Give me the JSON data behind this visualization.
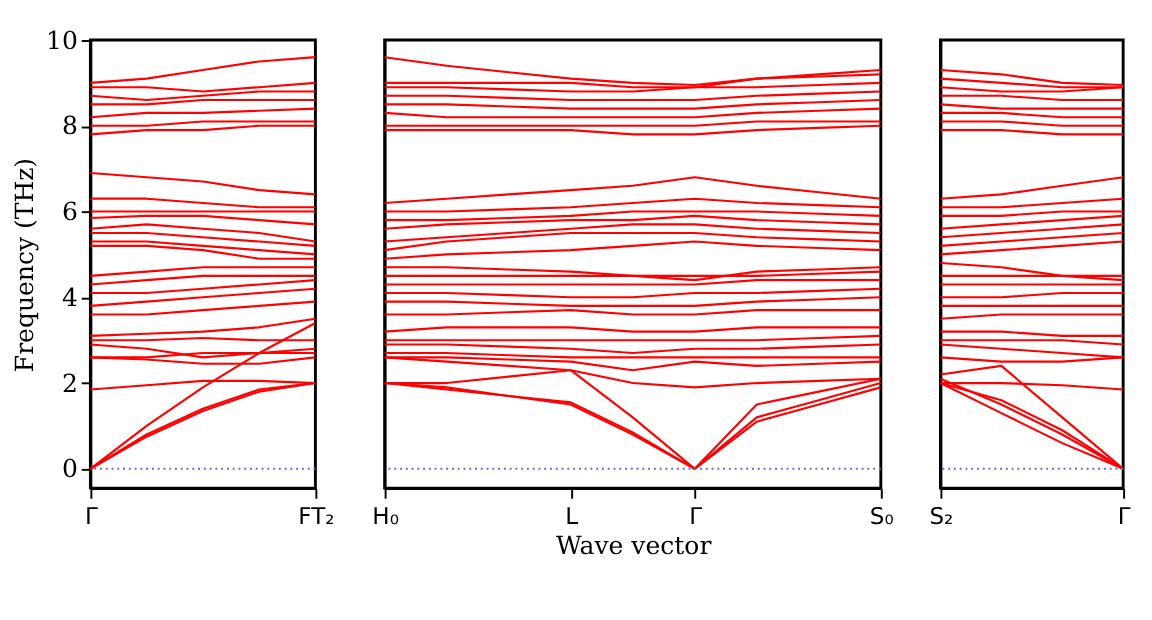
{
  "chart_data": [
    {
      "type": "line",
      "ylabel": "Frequency (THz)",
      "categories": [
        "Γ",
        null,
        null,
        null,
        "FT₂"
      ],
      "ylim": [
        -0.45,
        10
      ],
      "yticks": [
        0,
        2,
        4,
        6,
        8,
        10
      ],
      "grid": false,
      "tick_labels": "xy",
      "line_style": "solid",
      "marker": "none",
      "ref_lines": [
        {
          "axis": "y",
          "value": 0,
          "color": "#6666dd",
          "line_style": "dotted"
        }
      ],
      "series": [
        {
          "color": "#ff0000",
          "values": [
            0,
            0.75,
            1.35,
            1.8,
            2.0
          ]
        },
        {
          "color": "#ff0000",
          "values": [
            0,
            0.8,
            1.4,
            1.85,
            2.0
          ]
        },
        {
          "color": "#ff0000",
          "values": [
            0,
            1.0,
            1.9,
            2.7,
            3.4
          ]
        },
        {
          "color": "#ff0000",
          "values": [
            1.85,
            1.95,
            2.05,
            2.05,
            2.0
          ]
        },
        {
          "color": "#ff0000",
          "values": [
            2.6,
            2.55,
            2.45,
            2.45,
            2.6
          ]
        },
        {
          "color": "#ff0000",
          "values": [
            2.6,
            2.6,
            2.7,
            2.7,
            2.7
          ]
        },
        {
          "color": "#ff0000",
          "values": [
            2.9,
            2.8,
            2.6,
            2.7,
            2.8
          ]
        },
        {
          "color": "#ff0000",
          "values": [
            3.0,
            3.0,
            3.05,
            3.0,
            3.0
          ]
        },
        {
          "color": "#ff0000",
          "values": [
            3.1,
            3.15,
            3.2,
            3.3,
            3.5
          ]
        },
        {
          "color": "#ff0000",
          "values": [
            3.6,
            3.6,
            3.7,
            3.8,
            3.9
          ]
        },
        {
          "color": "#ff0000",
          "values": [
            3.8,
            3.9,
            4.0,
            4.1,
            4.2
          ]
        },
        {
          "color": "#ff0000",
          "values": [
            4.1,
            4.1,
            4.2,
            4.3,
            4.4
          ]
        },
        {
          "color": "#ff0000",
          "values": [
            4.3,
            4.4,
            4.5,
            4.5,
            4.5
          ]
        },
        {
          "color": "#ff0000",
          "values": [
            4.5,
            4.6,
            4.7,
            4.7,
            4.7
          ]
        },
        {
          "color": "#ff0000",
          "values": [
            5.2,
            5.2,
            5.1,
            4.9,
            4.9
          ]
        },
        {
          "color": "#ff0000",
          "values": [
            5.3,
            5.3,
            5.2,
            5.1,
            5.0
          ]
        },
        {
          "color": "#ff0000",
          "values": [
            5.5,
            5.5,
            5.4,
            5.3,
            5.2
          ]
        },
        {
          "color": "#ff0000",
          "values": [
            5.6,
            5.7,
            5.6,
            5.5,
            5.3
          ]
        },
        {
          "color": "#ff0000",
          "values": [
            5.85,
            5.9,
            5.9,
            5.8,
            5.7
          ]
        },
        {
          "color": "#ff0000",
          "values": [
            6.0,
            6.0,
            6.0,
            6.0,
            6.0
          ]
        },
        {
          "color": "#ff0000",
          "values": [
            6.3,
            6.3,
            6.2,
            6.1,
            6.1
          ]
        },
        {
          "color": "#ff0000",
          "values": [
            6.9,
            6.8,
            6.7,
            6.5,
            6.4
          ]
        },
        {
          "color": "#ff0000",
          "values": [
            7.8,
            7.9,
            7.9,
            8.0,
            8.0
          ]
        },
        {
          "color": "#ff0000",
          "values": [
            8.0,
            8.0,
            8.1,
            8.1,
            8.1
          ]
        },
        {
          "color": "#ff0000",
          "values": [
            8.2,
            8.3,
            8.3,
            8.35,
            8.4
          ]
        },
        {
          "color": "#ff0000",
          "values": [
            8.5,
            8.5,
            8.6,
            8.6,
            8.6
          ]
        },
        {
          "color": "#ff0000",
          "values": [
            8.7,
            8.6,
            8.7,
            8.8,
            8.8
          ]
        },
        {
          "color": "#ff0000",
          "values": [
            8.9,
            8.9,
            8.8,
            8.9,
            9.0
          ]
        },
        {
          "color": "#ff0000",
          "values": [
            9.0,
            9.1,
            9.3,
            9.5,
            9.6
          ]
        }
      ]
    },
    {
      "type": "line",
      "xlabel": "Wave vector",
      "categories": [
        "H₀",
        null,
        null,
        "L",
        null,
        "Γ",
        null,
        null,
        "S₀"
      ],
      "ylim": [
        -0.45,
        10
      ],
      "yticks": [
        0,
        2,
        4,
        6,
        8,
        10
      ],
      "grid": false,
      "tick_labels": "x",
      "line_style": "solid",
      "marker": "none",
      "ref_lines": [
        {
          "axis": "y",
          "value": 0,
          "color": "#6666dd",
          "line_style": "dotted"
        }
      ],
      "series": [
        {
          "color": "#ff0000",
          "values": [
            2.0,
            1.85,
            1.7,
            1.5,
            0.8,
            0,
            1.1,
            1.5,
            1.9
          ]
        },
        {
          "color": "#ff0000",
          "values": [
            2.0,
            1.9,
            1.7,
            1.55,
            0.85,
            0,
            1.2,
            1.6,
            2.0
          ]
        },
        {
          "color": "#ff0000",
          "values": [
            2.0,
            2.0,
            2.15,
            2.3,
            1.2,
            0,
            1.5,
            1.8,
            2.1
          ]
        },
        {
          "color": "#ff0000",
          "values": [
            2.6,
            2.5,
            2.4,
            2.3,
            2.0,
            1.9,
            2.0,
            2.05,
            2.1
          ]
        },
        {
          "color": "#ff0000",
          "values": [
            2.6,
            2.6,
            2.55,
            2.5,
            2.3,
            2.5,
            2.4,
            2.45,
            2.5
          ]
        },
        {
          "color": "#ff0000",
          "values": [
            2.7,
            2.7,
            2.65,
            2.6,
            2.6,
            2.6,
            2.6,
            2.6,
            2.6
          ]
        },
        {
          "color": "#ff0000",
          "values": [
            2.9,
            2.9,
            2.85,
            2.8,
            2.7,
            2.8,
            2.8,
            2.85,
            2.9
          ]
        },
        {
          "color": "#ff0000",
          "values": [
            3.0,
            3.0,
            3.0,
            3.0,
            3.0,
            3.0,
            3.0,
            3.05,
            3.1
          ]
        },
        {
          "color": "#ff0000",
          "values": [
            3.2,
            3.3,
            3.3,
            3.3,
            3.2,
            3.2,
            3.3,
            3.3,
            3.3
          ]
        },
        {
          "color": "#ff0000",
          "values": [
            3.6,
            3.6,
            3.65,
            3.7,
            3.6,
            3.6,
            3.7,
            3.7,
            3.7
          ]
        },
        {
          "color": "#ff0000",
          "values": [
            3.9,
            3.9,
            3.85,
            3.8,
            3.8,
            3.8,
            3.9,
            3.95,
            4.0
          ]
        },
        {
          "color": "#ff0000",
          "values": [
            4.1,
            4.1,
            4.05,
            4.0,
            4.0,
            4.1,
            4.1,
            4.15,
            4.2
          ]
        },
        {
          "color": "#ff0000",
          "values": [
            4.3,
            4.3,
            4.3,
            4.3,
            4.3,
            4.3,
            4.4,
            4.4,
            4.4
          ]
        },
        {
          "color": "#ff0000",
          "values": [
            4.5,
            4.5,
            4.5,
            4.5,
            4.5,
            4.5,
            4.5,
            4.55,
            4.6
          ]
        },
        {
          "color": "#ff0000",
          "values": [
            4.7,
            4.7,
            4.65,
            4.6,
            4.5,
            4.4,
            4.6,
            4.65,
            4.7
          ]
        },
        {
          "color": "#ff0000",
          "values": [
            4.9,
            5.0,
            5.05,
            5.1,
            5.2,
            5.3,
            5.2,
            5.15,
            5.1
          ]
        },
        {
          "color": "#ff0000",
          "values": [
            5.1,
            5.3,
            5.4,
            5.5,
            5.5,
            5.5,
            5.4,
            5.35,
            5.3
          ]
        },
        {
          "color": "#ff0000",
          "values": [
            5.3,
            5.4,
            5.5,
            5.6,
            5.7,
            5.7,
            5.6,
            5.55,
            5.5
          ]
        },
        {
          "color": "#ff0000",
          "values": [
            5.6,
            5.7,
            5.75,
            5.8,
            5.8,
            5.9,
            5.8,
            5.75,
            5.7
          ]
        },
        {
          "color": "#ff0000",
          "values": [
            5.8,
            5.8,
            5.85,
            5.9,
            6.0,
            6.0,
            6.0,
            5.95,
            5.9
          ]
        },
        {
          "color": "#ff0000",
          "values": [
            6.0,
            6.0,
            6.05,
            6.1,
            6.2,
            6.3,
            6.2,
            6.15,
            6.1
          ]
        },
        {
          "color": "#ff0000",
          "values": [
            6.2,
            6.3,
            6.4,
            6.5,
            6.6,
            6.8,
            6.6,
            6.45,
            6.3
          ]
        },
        {
          "color": "#ff0000",
          "values": [
            7.9,
            7.9,
            7.9,
            7.9,
            7.8,
            7.8,
            7.9,
            7.95,
            8.0
          ]
        },
        {
          "color": "#ff0000",
          "values": [
            8.0,
            8.0,
            8.0,
            8.0,
            8.0,
            8.0,
            8.1,
            8.1,
            8.1
          ]
        },
        {
          "color": "#ff0000",
          "values": [
            8.3,
            8.2,
            8.2,
            8.2,
            8.2,
            8.2,
            8.3,
            8.35,
            8.4
          ]
        },
        {
          "color": "#ff0000",
          "values": [
            8.5,
            8.5,
            8.45,
            8.4,
            8.4,
            8.4,
            8.5,
            8.55,
            8.6
          ]
        },
        {
          "color": "#ff0000",
          "values": [
            8.7,
            8.7,
            8.65,
            8.6,
            8.6,
            8.6,
            8.7,
            8.75,
            8.8
          ]
        },
        {
          "color": "#ff0000",
          "values": [
            8.9,
            8.9,
            8.85,
            8.8,
            8.8,
            8.9,
            8.9,
            8.95,
            9.0
          ]
        },
        {
          "color": "#ff0000",
          "values": [
            9.0,
            9.0,
            9.0,
            9.0,
            8.9,
            8.9,
            9.1,
            9.15,
            9.2
          ]
        },
        {
          "color": "#ff0000",
          "values": [
            9.6,
            9.4,
            9.25,
            9.1,
            9.0,
            8.95,
            9.1,
            9.2,
            9.3
          ]
        }
      ]
    },
    {
      "type": "line",
      "categories": [
        "S₂",
        null,
        null,
        "Γ"
      ],
      "ylim": [
        -0.45,
        10
      ],
      "yticks": [
        0,
        2,
        4,
        6,
        8,
        10
      ],
      "grid": false,
      "tick_labels": "x",
      "line_style": "solid",
      "marker": "none",
      "ref_lines": [
        {
          "axis": "y",
          "value": 0,
          "color": "#6666dd",
          "line_style": "dotted"
        }
      ],
      "series": [
        {
          "color": "#ff0000",
          "values": [
            2.1,
            1.5,
            0.8,
            0
          ]
        },
        {
          "color": "#ff0000",
          "values": [
            2.0,
            1.3,
            0.6,
            0
          ]
        },
        {
          "color": "#ff0000",
          "values": [
            2.0,
            1.6,
            0.9,
            0
          ]
        },
        {
          "color": "#ff0000",
          "values": [
            2.2,
            2.4,
            1.2,
            0
          ]
        },
        {
          "color": "#ff0000",
          "values": [
            2.0,
            2.0,
            1.95,
            1.85
          ]
        },
        {
          "color": "#ff0000",
          "values": [
            2.6,
            2.5,
            2.5,
            2.6
          ]
        },
        {
          "color": "#ff0000",
          "values": [
            2.9,
            2.8,
            2.7,
            2.6
          ]
        },
        {
          "color": "#ff0000",
          "values": [
            3.0,
            3.0,
            3.0,
            2.9
          ]
        },
        {
          "color": "#ff0000",
          "values": [
            3.2,
            3.2,
            3.1,
            3.1
          ]
        },
        {
          "color": "#ff0000",
          "values": [
            3.5,
            3.6,
            3.6,
            3.6
          ]
        },
        {
          "color": "#ff0000",
          "values": [
            3.8,
            3.8,
            3.8,
            3.8
          ]
        },
        {
          "color": "#ff0000",
          "values": [
            4.0,
            4.0,
            4.1,
            4.1
          ]
        },
        {
          "color": "#ff0000",
          "values": [
            4.3,
            4.3,
            4.3,
            4.3
          ]
        },
        {
          "color": "#ff0000",
          "values": [
            4.5,
            4.5,
            4.5,
            4.5
          ]
        },
        {
          "color": "#ff0000",
          "values": [
            4.8,
            4.7,
            4.5,
            4.4
          ]
        },
        {
          "color": "#ff0000",
          "values": [
            5.0,
            5.1,
            5.2,
            5.3
          ]
        },
        {
          "color": "#ff0000",
          "values": [
            5.2,
            5.3,
            5.4,
            5.5
          ]
        },
        {
          "color": "#ff0000",
          "values": [
            5.4,
            5.5,
            5.6,
            5.7
          ]
        },
        {
          "color": "#ff0000",
          "values": [
            5.6,
            5.7,
            5.8,
            5.9
          ]
        },
        {
          "color": "#ff0000",
          "values": [
            5.9,
            5.9,
            6.0,
            6.0
          ]
        },
        {
          "color": "#ff0000",
          "values": [
            6.1,
            6.1,
            6.2,
            6.3
          ]
        },
        {
          "color": "#ff0000",
          "values": [
            6.3,
            6.4,
            6.6,
            6.8
          ]
        },
        {
          "color": "#ff0000",
          "values": [
            7.9,
            7.9,
            7.8,
            7.8
          ]
        },
        {
          "color": "#ff0000",
          "values": [
            8.1,
            8.1,
            8.0,
            8.0
          ]
        },
        {
          "color": "#ff0000",
          "values": [
            8.3,
            8.3,
            8.2,
            8.2
          ]
        },
        {
          "color": "#ff0000",
          "values": [
            8.5,
            8.4,
            8.4,
            8.4
          ]
        },
        {
          "color": "#ff0000",
          "values": [
            8.7,
            8.7,
            8.6,
            8.6
          ]
        },
        {
          "color": "#ff0000",
          "values": [
            8.9,
            8.8,
            8.8,
            8.9
          ]
        },
        {
          "color": "#ff0000",
          "values": [
            9.1,
            9.0,
            8.9,
            8.9
          ]
        },
        {
          "color": "#ff0000",
          "values": [
            9.3,
            9.2,
            9.0,
            8.95
          ]
        }
      ]
    }
  ]
}
